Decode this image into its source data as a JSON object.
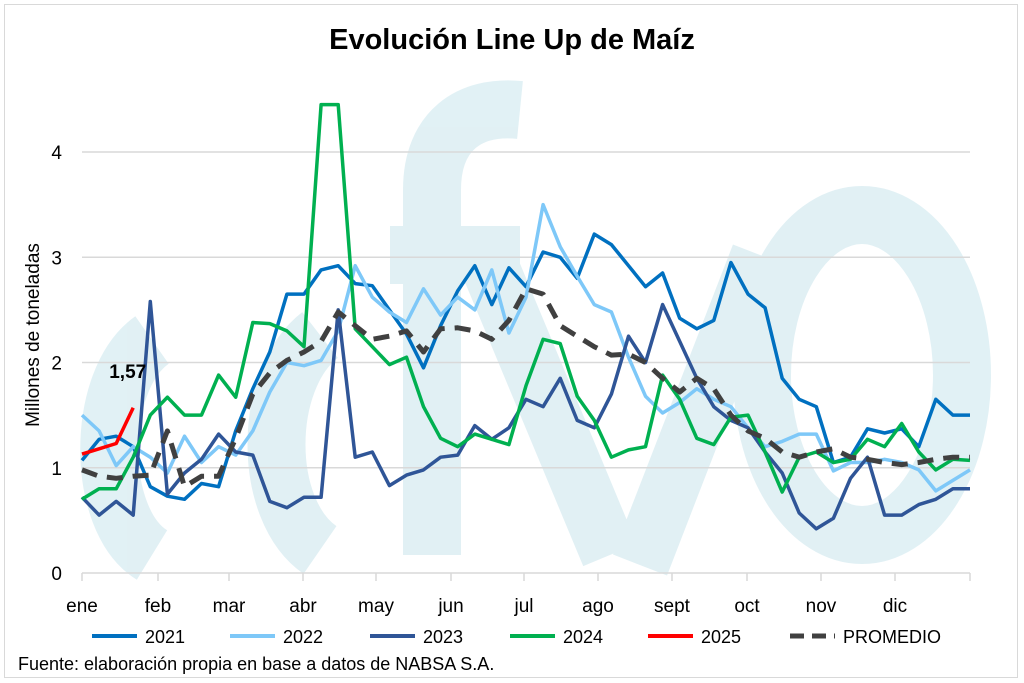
{
  "chart_data": {
    "type": "line",
    "title": "Evolución Line Up de Maíz",
    "xlabel": "",
    "ylabel": "Millones de toneladas",
    "ylim": [
      0,
      4.5
    ],
    "yticks": [
      "0",
      "1",
      "2",
      "3",
      "4"
    ],
    "x_month_labels": [
      "ene",
      "feb",
      "mar",
      "abr",
      "may",
      "jun",
      "jul",
      "ago",
      "sept",
      "oct",
      "nov",
      "dic"
    ],
    "weeks": 53,
    "grid": true,
    "legend_position": "bottom",
    "annotation": "1,57",
    "series": [
      {
        "name": "2021",
        "color": "#0070C0",
        "dashed": false,
        "values": [
          1.07,
          1.27,
          1.3,
          1.2,
          0.82,
          0.73,
          0.7,
          0.85,
          0.82,
          1.35,
          1.75,
          2.1,
          2.65,
          2.65,
          2.88,
          2.92,
          2.75,
          2.73,
          2.5,
          2.27,
          1.95,
          2.35,
          2.68,
          2.92,
          2.55,
          2.9,
          2.72,
          3.05,
          3.0,
          2.8,
          3.22,
          3.12,
          2.92,
          2.72,
          2.85,
          2.42,
          2.32,
          2.4,
          2.95,
          2.65,
          2.52,
          1.85,
          1.65,
          1.58,
          1.05,
          1.1,
          1.37,
          1.33,
          1.37,
          1.2,
          1.65,
          1.5,
          1.5
        ]
      },
      {
        "name": "2022",
        "color": "#7EC8F8",
        "dashed": false,
        "values": [
          1.5,
          1.35,
          1.02,
          1.2,
          1.1,
          0.95,
          1.3,
          1.05,
          1.2,
          1.12,
          1.35,
          1.72,
          2.0,
          1.97,
          2.02,
          2.3,
          2.92,
          2.62,
          2.48,
          2.38,
          2.7,
          2.45,
          2.62,
          2.5,
          2.88,
          2.28,
          2.62,
          3.5,
          3.1,
          2.82,
          2.55,
          2.48,
          2.05,
          1.68,
          1.52,
          1.62,
          1.75,
          1.65,
          1.58,
          1.38,
          1.2,
          1.25,
          1.32,
          1.32,
          0.97,
          1.05,
          1.05,
          1.08,
          1.05,
          0.98,
          0.78,
          0.88,
          0.98
        ]
      },
      {
        "name": "2023",
        "color": "#2F5597",
        "dashed": false,
        "values": [
          0.72,
          0.55,
          0.68,
          0.55,
          2.58,
          0.75,
          0.95,
          1.08,
          1.32,
          1.15,
          1.12,
          0.68,
          0.62,
          0.72,
          0.72,
          2.5,
          1.1,
          1.15,
          0.83,
          0.93,
          0.98,
          1.1,
          1.12,
          1.4,
          1.27,
          1.38,
          1.65,
          1.58,
          1.85,
          1.45,
          1.38,
          1.7,
          2.25,
          2.0,
          2.55,
          2.2,
          1.85,
          1.58,
          1.45,
          1.38,
          1.15,
          0.95,
          0.57,
          0.42,
          0.52,
          0.9,
          1.1,
          0.55,
          0.55,
          0.65,
          0.7,
          0.8,
          0.8
        ]
      },
      {
        "name": "2024",
        "color": "#00B050",
        "dashed": false,
        "values": [
          0.7,
          0.8,
          0.8,
          1.1,
          1.5,
          1.67,
          1.5,
          1.5,
          1.88,
          1.67,
          2.38,
          2.37,
          2.3,
          2.15,
          4.45,
          4.45,
          2.32,
          2.15,
          1.98,
          2.05,
          1.58,
          1.28,
          1.2,
          1.32,
          1.27,
          1.22,
          1.78,
          2.22,
          2.18,
          1.68,
          1.45,
          1.1,
          1.17,
          1.2,
          1.88,
          1.65,
          1.28,
          1.22,
          1.48,
          1.5,
          1.15,
          0.77,
          1.1,
          1.15,
          1.05,
          1.08,
          1.27,
          1.2,
          1.42,
          1.15,
          0.98,
          1.08,
          1.07
        ]
      },
      {
        "name": "2025",
        "color": "#FF0000",
        "dashed": false,
        "values": [
          1.13,
          1.18,
          1.23,
          1.57
        ]
      },
      {
        "name": "PROMEDIO",
        "color": "#404040",
        "dashed": true,
        "values": [
          0.98,
          0.92,
          0.9,
          0.92,
          0.93,
          1.35,
          0.82,
          0.92,
          0.92,
          1.28,
          1.7,
          1.9,
          2.02,
          2.1,
          2.2,
          2.48,
          2.35,
          2.22,
          2.25,
          2.3,
          2.1,
          2.32,
          2.33,
          2.3,
          2.22,
          2.4,
          2.7,
          2.65,
          2.35,
          2.25,
          2.15,
          2.07,
          2.08,
          2.0,
          1.85,
          1.72,
          1.85,
          1.75,
          1.5,
          1.35,
          1.28,
          1.15,
          1.1,
          1.15,
          1.18,
          1.1,
          1.08,
          1.05,
          1.03,
          1.05,
          1.08,
          1.1,
          1.1
        ]
      }
    ],
    "source": "Fuente: elaboración propia en base a datos de NABSA S.A.",
    "watermark": "fyo"
  }
}
